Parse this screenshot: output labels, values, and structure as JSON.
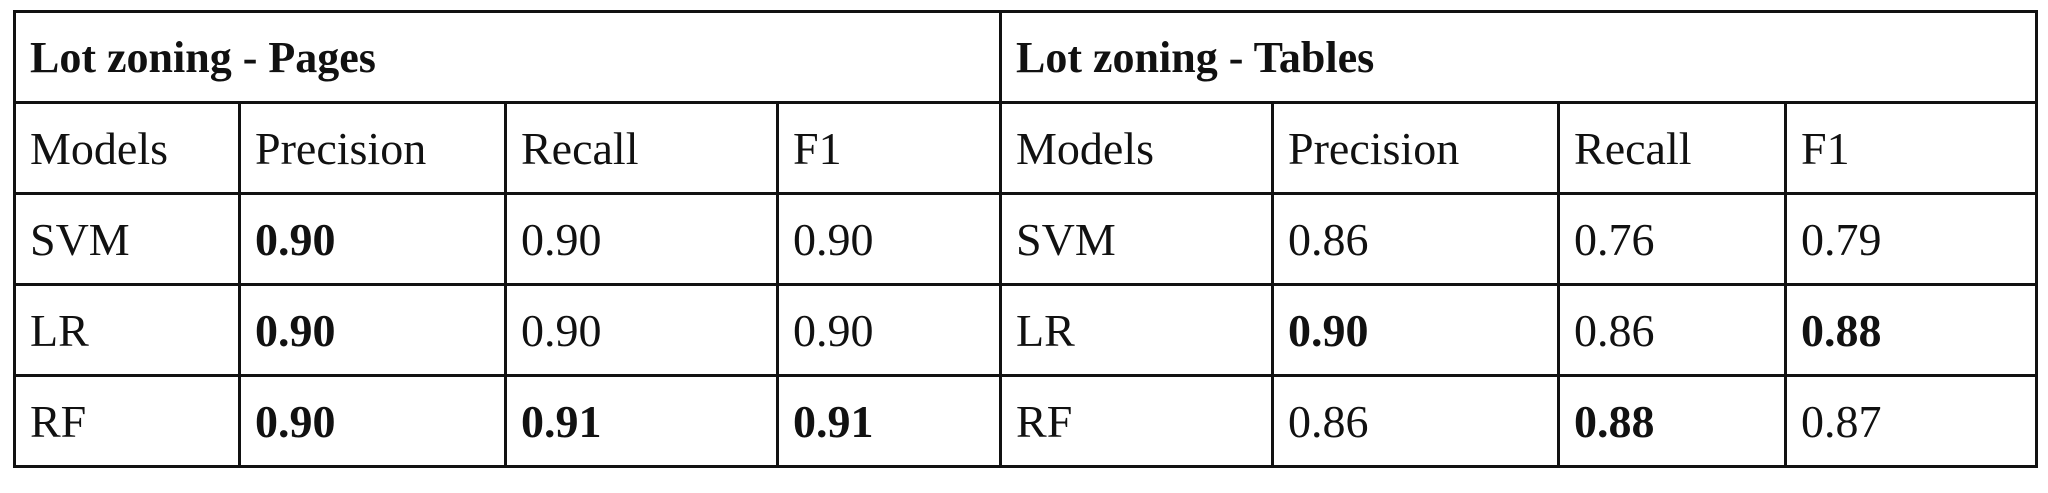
{
  "table": {
    "groups": [
      "Lot zoning - Pages",
      "Lot zoning - Tables"
    ],
    "columns": [
      "Models",
      "Precision",
      "Recall",
      "F1",
      "Models",
      "Precision",
      "Recall",
      "F1"
    ],
    "rows": [
      {
        "cells": [
          "SVM",
          "0.90",
          "0.90",
          "0.90",
          "SVM",
          "0.86",
          "0.76",
          "0.79"
        ],
        "bold": [
          false,
          true,
          false,
          false,
          false,
          false,
          false,
          false
        ]
      },
      {
        "cells": [
          "LR",
          "0.90",
          "0.90",
          "0.90",
          "LR",
          "0.90",
          "0.86",
          "0.88"
        ],
        "bold": [
          false,
          true,
          false,
          false,
          false,
          true,
          false,
          true
        ]
      },
      {
        "cells": [
          "RF",
          "0.90",
          "0.91",
          "0.91",
          "RF",
          "0.86",
          "0.88",
          "0.87"
        ],
        "bold": [
          false,
          true,
          true,
          true,
          false,
          false,
          true,
          false
        ]
      }
    ]
  }
}
